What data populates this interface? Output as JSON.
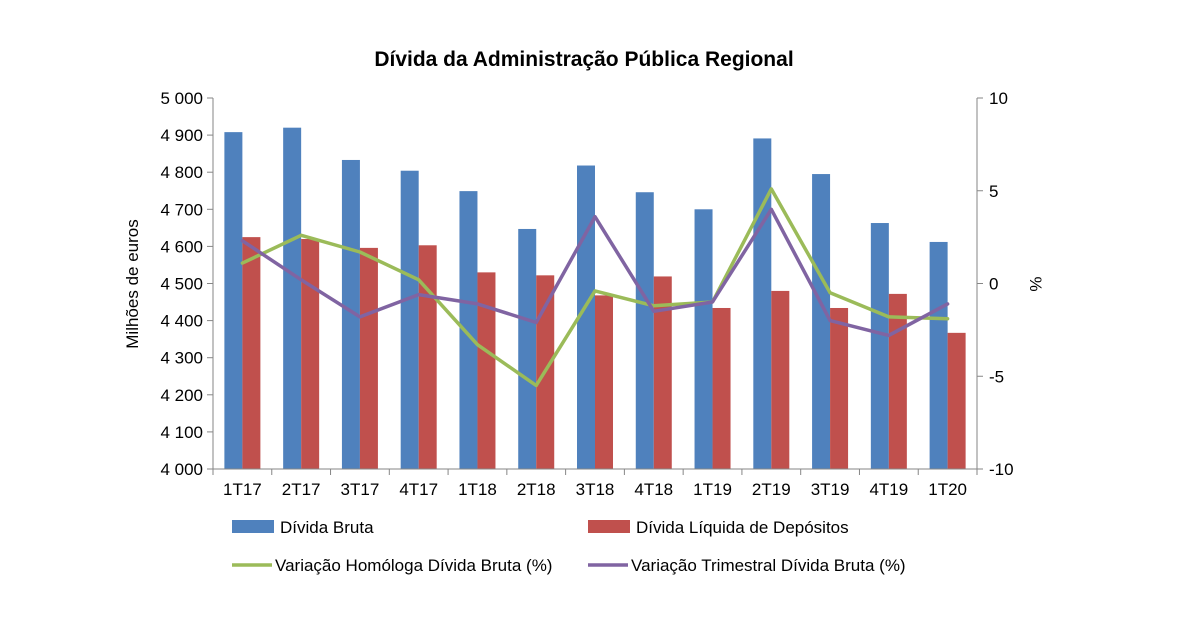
{
  "chart_data": {
    "type": "bar",
    "title": "Dívida da Administração Pública Regional",
    "ylabel": "Milhões de euros",
    "y2label": "%",
    "categories": [
      "1T17",
      "2T17",
      "3T17",
      "4T17",
      "1T18",
      "2T18",
      "3T18",
      "4T18",
      "1T19",
      "2T19",
      "3T19",
      "4T19",
      "1T20"
    ],
    "ylim": [
      4000,
      5000
    ],
    "y2lim": [
      -10,
      10
    ],
    "yticks": [
      "4 000",
      "4 100",
      "4 200",
      "4 300",
      "4 400",
      "4 500",
      "4 600",
      "4 700",
      "4 800",
      "4 900",
      "5 000"
    ],
    "y2ticks": [
      "-10",
      "-5",
      "0",
      "5",
      "10"
    ],
    "legend_position": "bottom",
    "series": [
      {
        "name": "Dívida Bruta",
        "kind": "bar",
        "axis": "left",
        "color": "#4f81bd",
        "values": [
          4908,
          4920,
          4833,
          4804,
          4749,
          4647,
          4818,
          4746,
          4700,
          4891,
          4795,
          4663,
          4612
        ]
      },
      {
        "name": "Dívida Líquida de Depósitos",
        "kind": "bar",
        "axis": "left",
        "color": "#c0504d",
        "values": [
          4625,
          4620,
          4596,
          4603,
          4530,
          4522,
          4468,
          4519,
          4434,
          4480,
          4434,
          4472,
          4367
        ]
      },
      {
        "name": "Variação Homóloga Dívida Bruta (%)",
        "kind": "line",
        "axis": "right",
        "color": "#9bbb59",
        "values": [
          1.1,
          2.6,
          1.7,
          0.2,
          -3.3,
          -5.5,
          -0.4,
          -1.2,
          -1.0,
          5.1,
          -0.5,
          -1.8,
          -1.9
        ]
      },
      {
        "name": "Variação Trimestral Dívida Bruta (%)",
        "kind": "line",
        "axis": "right",
        "color": "#8064a2",
        "values": [
          2.3,
          0.2,
          -1.8,
          -0.6,
          -1.1,
          -2.1,
          3.6,
          -1.5,
          -1.0,
          4.0,
          -2.0,
          -2.8,
          -1.1
        ]
      }
    ]
  }
}
